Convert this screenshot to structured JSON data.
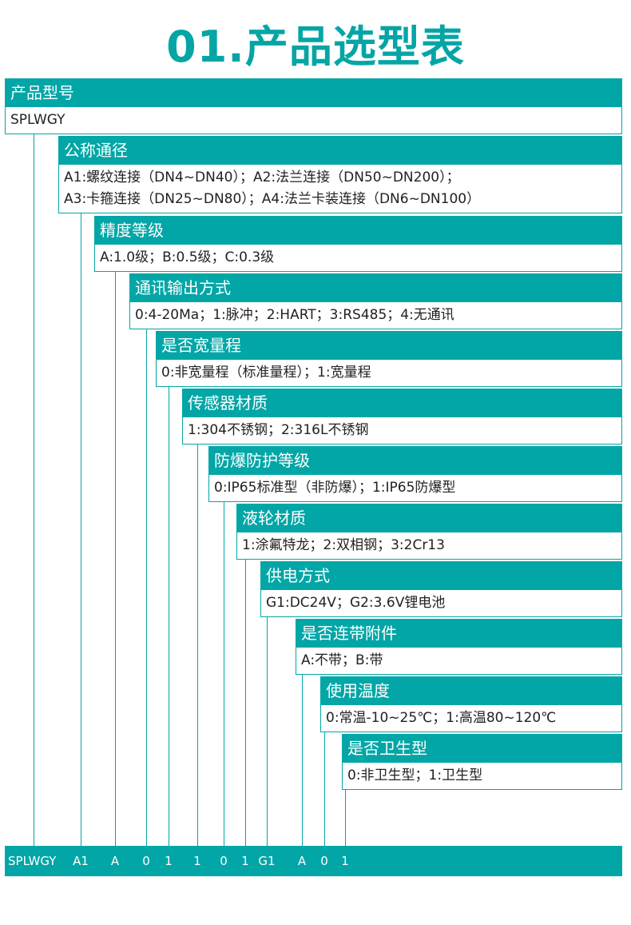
{
  "title": "01.产品选型表",
  "accent_color": "#02a6a6",
  "sections": [
    {
      "header": "产品型号",
      "lines": [
        "SPLWGY"
      ]
    },
    {
      "header": "公称通径",
      "lines": [
        "A1:螺纹连接（DN4~DN40）；A2:法兰连接（DN50~DN200）；",
        "A3:卡箍连接（DN25~DN80）；A4:法兰卡装连接（DN6~DN100）"
      ]
    },
    {
      "header": "精度等级",
      "lines": [
        "A:1.0级；B:0.5级；C:0.3级"
      ]
    },
    {
      "header": "通讯输出方式",
      "lines": [
        "0:4-20Ma；1:脉冲；2:HART；3:RS485；4:无通讯"
      ]
    },
    {
      "header": "是否宽量程",
      "lines": [
        "0:非宽量程（标准量程）；1:宽量程"
      ]
    },
    {
      "header": "传感器材质",
      "lines": [
        "1:304不锈钢；2:316L不锈钢"
      ]
    },
    {
      "header": "防爆防护等级",
      "lines": [
        "0:IP65标准型（非防爆）；1:IP65防爆型"
      ]
    },
    {
      "header": "液轮材质",
      "lines": [
        "1:涂氟特龙；2:双相钢；3:2Cr13"
      ]
    },
    {
      "header": "供电方式",
      "lines": [
        "G1:DC24V；G2:3.6V锂电池"
      ]
    },
    {
      "header": "是否连带附件",
      "lines": [
        "A:不带；B:带"
      ]
    },
    {
      "header": "使用温度",
      "lines": [
        "0:常温-10~25℃；1:高温80~120℃"
      ]
    },
    {
      "header": "是否卫生型",
      "lines": [
        "0:非卫生型；1:卫生型"
      ]
    }
  ],
  "example_codes": [
    "SPLWGY",
    "A1",
    "A",
    "0",
    "1",
    "1",
    "0",
    "1",
    "G1",
    "A",
    "0",
    "1"
  ]
}
